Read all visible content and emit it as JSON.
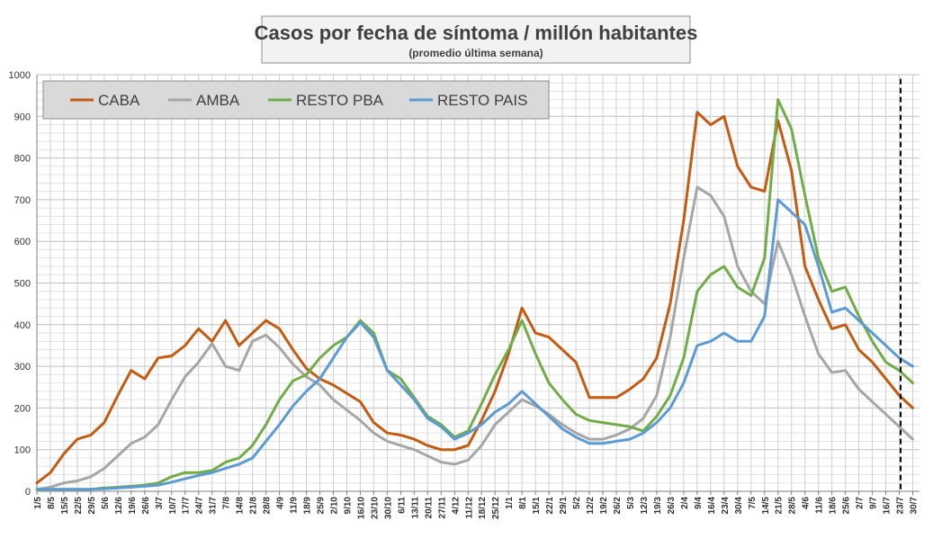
{
  "chart_data": {
    "type": "line",
    "title": "Casos por fecha de síntoma / millón habitantes",
    "subtitle": "(promedio última semana)",
    "xlabel": "",
    "ylabel": "",
    "ylim": [
      0,
      1000
    ],
    "yticks": [
      0,
      100,
      200,
      300,
      400,
      500,
      600,
      700,
      800,
      900,
      1000
    ],
    "grid": true,
    "legend_position": "top-left",
    "x_tick_labels": [
      "1/5",
      "8/5",
      "15/5",
      "22/5",
      "29/5",
      "5/6",
      "12/6",
      "19/6",
      "26/6",
      "3/7",
      "10/7",
      "17/7",
      "24/7",
      "31/7",
      "7/8",
      "14/8",
      "21/8",
      "28/8",
      "4/9",
      "11/9",
      "18/9",
      "25/9",
      "2/10",
      "9/10",
      "16/10",
      "23/10",
      "30/10",
      "6/11",
      "13/11",
      "20/11",
      "27/11",
      "4/12",
      "11/12",
      "18/12",
      "25/12",
      "1/1",
      "8/1",
      "15/1",
      "22/1",
      "29/1",
      "5/2",
      "12/2",
      "19/2",
      "26/2",
      "5/3",
      "12/3",
      "19/3",
      "26/3",
      "2/4",
      "9/4",
      "16/4",
      "23/4",
      "30/4",
      "7/5",
      "14/5",
      "21/5",
      "28/5",
      "4/6",
      "11/6",
      "18/6",
      "25/6",
      "2/7",
      "9/7",
      "16/7",
      "23/7",
      "30/7"
    ],
    "x_unit": "week_index",
    "marker_line": {
      "x": 64.1,
      "style": "dashed",
      "color": "#000000"
    },
    "series": [
      {
        "name": "CABA",
        "color": "#c55a11",
        "points": [
          [
            0,
            20
          ],
          [
            1,
            45
          ],
          [
            2,
            90
          ],
          [
            3,
            125
          ],
          [
            4,
            135
          ],
          [
            5,
            165
          ],
          [
            6,
            230
          ],
          [
            7,
            290
          ],
          [
            8,
            270
          ],
          [
            9,
            320
          ],
          [
            10,
            325
          ],
          [
            11,
            350
          ],
          [
            12,
            390
          ],
          [
            13,
            360
          ],
          [
            14,
            410
          ],
          [
            15,
            350
          ],
          [
            16,
            380
          ],
          [
            17,
            410
          ],
          [
            18,
            390
          ],
          [
            19,
            340
          ],
          [
            20,
            295
          ],
          [
            21,
            270
          ],
          [
            22,
            255
          ],
          [
            23,
            235
          ],
          [
            24,
            215
          ],
          [
            25,
            165
          ],
          [
            26,
            140
          ],
          [
            27,
            135
          ],
          [
            28,
            125
          ],
          [
            29,
            110
          ],
          [
            30,
            100
          ],
          [
            31,
            100
          ],
          [
            32,
            110
          ],
          [
            33,
            170
          ],
          [
            34,
            240
          ],
          [
            35,
            330
          ],
          [
            36,
            440
          ],
          [
            37,
            380
          ],
          [
            38,
            370
          ],
          [
            39,
            340
          ],
          [
            40,
            310
          ],
          [
            41,
            225
          ],
          [
            42,
            225
          ],
          [
            43,
            225
          ],
          [
            44,
            245
          ],
          [
            45,
            270
          ],
          [
            46,
            320
          ],
          [
            47,
            450
          ],
          [
            48,
            650
          ],
          [
            49,
            910
          ],
          [
            50,
            880
          ],
          [
            51,
            900
          ],
          [
            52,
            780
          ],
          [
            53,
            730
          ],
          [
            54,
            720
          ],
          [
            55,
            890
          ],
          [
            56,
            770
          ],
          [
            57,
            540
          ],
          [
            58,
            460
          ],
          [
            59,
            390
          ],
          [
            60,
            400
          ],
          [
            61,
            340
          ],
          [
            62,
            310
          ],
          [
            63,
            270
          ],
          [
            64,
            230
          ],
          [
            65,
            200
          ]
        ]
      },
      {
        "name": "AMBA",
        "color": "#a6a6a6",
        "points": [
          [
            0,
            5
          ],
          [
            1,
            10
          ],
          [
            2,
            20
          ],
          [
            3,
            25
          ],
          [
            4,
            35
          ],
          [
            5,
            55
          ],
          [
            6,
            85
          ],
          [
            7,
            115
          ],
          [
            8,
            130
          ],
          [
            9,
            160
          ],
          [
            10,
            220
          ],
          [
            11,
            275
          ],
          [
            12,
            310
          ],
          [
            13,
            355
          ],
          [
            14,
            300
          ],
          [
            15,
            290
          ],
          [
            16,
            360
          ],
          [
            17,
            375
          ],
          [
            18,
            345
          ],
          [
            19,
            305
          ],
          [
            20,
            275
          ],
          [
            21,
            255
          ],
          [
            22,
            220
          ],
          [
            23,
            195
          ],
          [
            24,
            170
          ],
          [
            25,
            140
          ],
          [
            26,
            120
          ],
          [
            27,
            110
          ],
          [
            28,
            100
          ],
          [
            29,
            85
          ],
          [
            30,
            70
          ],
          [
            31,
            65
          ],
          [
            32,
            75
          ],
          [
            33,
            110
          ],
          [
            34,
            160
          ],
          [
            35,
            190
          ],
          [
            36,
            220
          ],
          [
            37,
            205
          ],
          [
            38,
            185
          ],
          [
            39,
            160
          ],
          [
            40,
            140
          ],
          [
            41,
            125
          ],
          [
            42,
            125
          ],
          [
            43,
            135
          ],
          [
            44,
            150
          ],
          [
            45,
            175
          ],
          [
            46,
            230
          ],
          [
            47,
            370
          ],
          [
            48,
            560
          ],
          [
            49,
            730
          ],
          [
            50,
            710
          ],
          [
            51,
            660
          ],
          [
            52,
            540
          ],
          [
            53,
            480
          ],
          [
            54,
            450
          ],
          [
            55,
            600
          ],
          [
            56,
            520
          ],
          [
            57,
            420
          ],
          [
            58,
            330
          ],
          [
            59,
            285
          ],
          [
            60,
            290
          ],
          [
            61,
            245
          ],
          [
            62,
            215
          ],
          [
            63,
            185
          ],
          [
            64,
            155
          ],
          [
            65,
            125
          ]
        ]
      },
      {
        "name": "RESTO PBA",
        "color": "#70ad47",
        "points": [
          [
            0,
            5
          ],
          [
            1,
            5
          ],
          [
            2,
            5
          ],
          [
            3,
            5
          ],
          [
            4,
            5
          ],
          [
            5,
            8
          ],
          [
            6,
            10
          ],
          [
            7,
            12
          ],
          [
            8,
            15
          ],
          [
            9,
            20
          ],
          [
            10,
            35
          ],
          [
            11,
            45
          ],
          [
            12,
            45
          ],
          [
            13,
            50
          ],
          [
            14,
            70
          ],
          [
            15,
            80
          ],
          [
            16,
            110
          ],
          [
            17,
            160
          ],
          [
            18,
            220
          ],
          [
            19,
            265
          ],
          [
            20,
            280
          ],
          [
            21,
            320
          ],
          [
            22,
            350
          ],
          [
            23,
            370
          ],
          [
            24,
            410
          ],
          [
            25,
            380
          ],
          [
            26,
            290
          ],
          [
            27,
            270
          ],
          [
            28,
            225
          ],
          [
            29,
            180
          ],
          [
            30,
            160
          ],
          [
            31,
            130
          ],
          [
            32,
            145
          ],
          [
            33,
            210
          ],
          [
            34,
            280
          ],
          [
            35,
            340
          ],
          [
            36,
            410
          ],
          [
            37,
            330
          ],
          [
            38,
            260
          ],
          [
            39,
            220
          ],
          [
            40,
            185
          ],
          [
            41,
            170
          ],
          [
            42,
            165
          ],
          [
            43,
            160
          ],
          [
            44,
            155
          ],
          [
            45,
            145
          ],
          [
            46,
            180
          ],
          [
            47,
            230
          ],
          [
            48,
            320
          ],
          [
            49,
            480
          ],
          [
            50,
            520
          ],
          [
            51,
            540
          ],
          [
            52,
            490
          ],
          [
            53,
            470
          ],
          [
            54,
            560
          ],
          [
            55,
            940
          ],
          [
            56,
            870
          ],
          [
            57,
            710
          ],
          [
            58,
            560
          ],
          [
            59,
            480
          ],
          [
            60,
            490
          ],
          [
            61,
            420
          ],
          [
            62,
            360
          ],
          [
            63,
            310
          ],
          [
            64,
            290
          ],
          [
            65,
            260
          ]
        ]
      },
      {
        "name": "RESTO PAIS",
        "color": "#5b9bd5",
        "points": [
          [
            0,
            5
          ],
          [
            1,
            5
          ],
          [
            2,
            5
          ],
          [
            3,
            5
          ],
          [
            4,
            5
          ],
          [
            5,
            6
          ],
          [
            6,
            8
          ],
          [
            7,
            10
          ],
          [
            8,
            12
          ],
          [
            9,
            15
          ],
          [
            10,
            22
          ],
          [
            11,
            30
          ],
          [
            12,
            38
          ],
          [
            13,
            45
          ],
          [
            14,
            55
          ],
          [
            15,
            65
          ],
          [
            16,
            80
          ],
          [
            17,
            120
          ],
          [
            18,
            160
          ],
          [
            19,
            205
          ],
          [
            20,
            240
          ],
          [
            21,
            270
          ],
          [
            22,
            320
          ],
          [
            23,
            370
          ],
          [
            24,
            405
          ],
          [
            25,
            370
          ],
          [
            26,
            290
          ],
          [
            27,
            255
          ],
          [
            28,
            220
          ],
          [
            29,
            175
          ],
          [
            30,
            155
          ],
          [
            31,
            125
          ],
          [
            32,
            140
          ],
          [
            33,
            160
          ],
          [
            34,
            190
          ],
          [
            35,
            210
          ],
          [
            36,
            240
          ],
          [
            37,
            210
          ],
          [
            38,
            180
          ],
          [
            39,
            150
          ],
          [
            40,
            130
          ],
          [
            41,
            115
          ],
          [
            42,
            115
          ],
          [
            43,
            120
          ],
          [
            44,
            125
          ],
          [
            45,
            140
          ],
          [
            46,
            165
          ],
          [
            47,
            200
          ],
          [
            48,
            260
          ],
          [
            49,
            350
          ],
          [
            50,
            360
          ],
          [
            51,
            380
          ],
          [
            52,
            360
          ],
          [
            53,
            360
          ],
          [
            54,
            420
          ],
          [
            55,
            700
          ],
          [
            56,
            670
          ],
          [
            57,
            640
          ],
          [
            58,
            540
          ],
          [
            59,
            430
          ],
          [
            60,
            440
          ],
          [
            61,
            410
          ],
          [
            62,
            380
          ],
          [
            63,
            350
          ],
          [
            64,
            320
          ],
          [
            65,
            300
          ]
        ]
      }
    ]
  }
}
